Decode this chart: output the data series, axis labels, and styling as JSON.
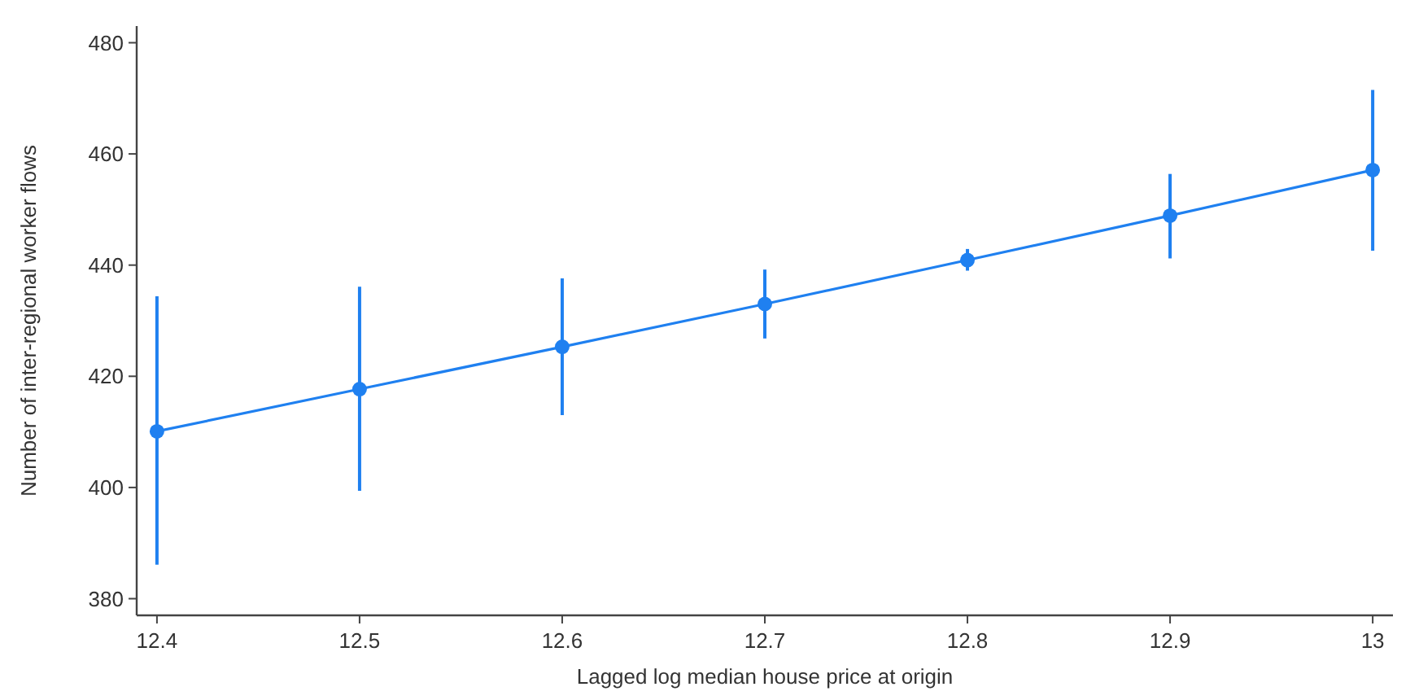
{
  "chart_data": {
    "type": "line",
    "xlabel": "Lagged log median house price at origin",
    "ylabel": "Number of inter-regional worker flows",
    "x": [
      12.4,
      12.5,
      12.6,
      12.7,
      12.8,
      12.9,
      13
    ],
    "series": [
      {
        "color": "#1f80f0",
        "values": [
          410.1,
          417.7,
          425.3,
          433.0,
          440.9,
          448.9,
          457.1
        ],
        "errors": [
          [
            386.1,
            434.4
          ],
          [
            399.4,
            436.1
          ],
          [
            413.0,
            437.6
          ],
          [
            426.8,
            439.2
          ],
          [
            439.0,
            442.9
          ],
          [
            441.2,
            456.4
          ],
          [
            442.6,
            471.5
          ]
        ]
      }
    ],
    "xlim": [
      12.39,
      13.01
    ],
    "ylim": [
      377,
      483
    ],
    "xticks": [
      12.4,
      12.5,
      12.6,
      12.7,
      12.8,
      12.9,
      13
    ],
    "yticks": [
      380,
      400,
      420,
      440,
      460,
      480
    ],
    "grid": false,
    "marker": "circle",
    "line_style": "solid"
  }
}
